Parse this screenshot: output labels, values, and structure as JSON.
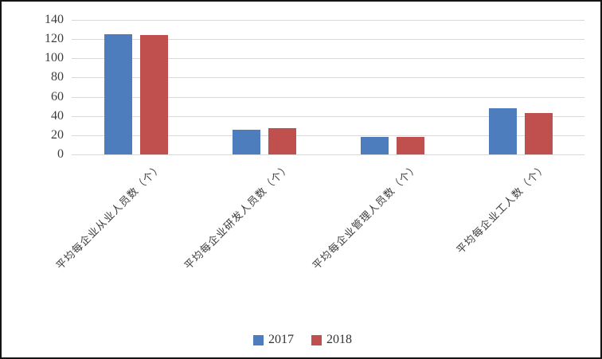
{
  "chart_data": {
    "type": "bar",
    "title": "",
    "xlabel": "",
    "ylabel": "",
    "categories": [
      "平均每企业从业人员数（个）",
      "平均每企业研发人员数（个）",
      "平均每企业管理人员数（个）",
      "平均每企业工人数（个）"
    ],
    "series": [
      {
        "name": "2017",
        "color": "#4e7dbe",
        "values": [
          125,
          26,
          18,
          48
        ]
      },
      {
        "name": "2018",
        "color": "#c0504d",
        "values": [
          124,
          27,
          18,
          43
        ]
      }
    ],
    "ylim": [
      0,
      140
    ],
    "ytick_step": 20,
    "yticks": [
      0,
      20,
      40,
      60,
      80,
      100,
      120,
      140
    ],
    "grid": true,
    "legend_position": "bottom",
    "legend": [
      "2017",
      "2018"
    ]
  },
  "colors": {
    "gridline": "#d9d9d9",
    "axis_text": "#3c3c3c",
    "background": "#ffffff",
    "frame": "#141414"
  }
}
